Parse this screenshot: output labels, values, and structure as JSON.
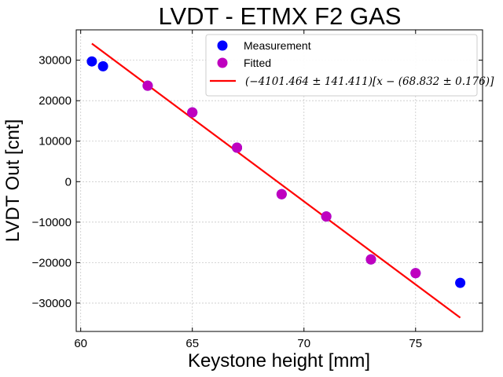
{
  "chart_data": {
    "type": "scatter",
    "title": "LVDT - ETMX F2 GAS",
    "xlabel": "Keystone height [mm]",
    "ylabel": "LVDT Out [cnt]",
    "xlim": [
      59.8,
      78
    ],
    "ylim": [
      -37000,
      37500
    ],
    "xticks": [
      60,
      65,
      70,
      75
    ],
    "xtick_labels": [
      "60",
      "65",
      "70",
      "75"
    ],
    "yticks": [
      -30000,
      -20000,
      -10000,
      0,
      10000,
      20000,
      30000
    ],
    "ytick_labels": [
      "−30000",
      "−20000",
      "−10000",
      "0",
      "10000",
      "20000",
      "30000"
    ],
    "grid": true,
    "legend_position": "top-right",
    "series": [
      {
        "name": "Measurement",
        "kind": "scatter",
        "color": "#0000ff",
        "x": [
          60.5,
          61,
          63,
          65,
          67,
          69,
          71,
          73,
          75,
          77
        ],
        "y": [
          29700,
          28500,
          23700,
          17100,
          8400,
          -3100,
          -8600,
          -19200,
          -22600,
          -25000
        ]
      },
      {
        "name": "Fitted",
        "kind": "scatter",
        "color": "#bf00bf",
        "x": [
          63,
          65,
          67,
          69,
          71,
          73,
          75
        ],
        "y": [
          23700,
          17100,
          8400,
          -3100,
          -8600,
          -19200,
          -22600
        ]
      },
      {
        "name": "(−4101.464 ± 141.411)[x − (68.832 ± 0.176)]",
        "kind": "line",
        "color": "#ff0000",
        "x": [
          60.5,
          77
        ],
        "y": [
          34100,
          -33600
        ]
      }
    ]
  }
}
